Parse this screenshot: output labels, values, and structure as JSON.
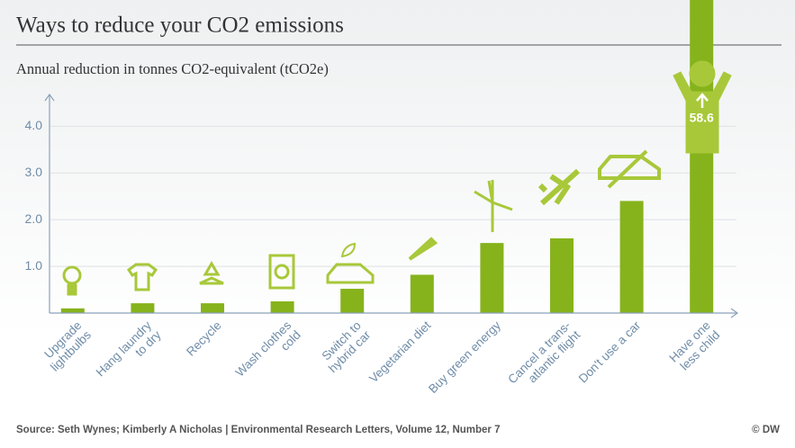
{
  "chart_data": {
    "type": "bar",
    "title": "Ways to reduce your CO2 emissions",
    "subtitle": "Annual reduction in tonnes CO2-equivalent (tCO2e)",
    "categories": [
      [
        "Upgrade",
        "lightbulbs"
      ],
      [
        "Hang laundry",
        "to dry"
      ],
      [
        "Recycle"
      ],
      [
        "Wash clothes",
        "cold"
      ],
      [
        "Switch to",
        "hybrid car"
      ],
      [
        "Vegetarian diet"
      ],
      [
        "Buy green energy"
      ],
      [
        "Cancel a trans-",
        "atlantic flight"
      ],
      [
        "Don't use a car"
      ],
      [
        "Have one",
        "less child"
      ]
    ],
    "values": [
      0.1,
      0.21,
      0.21,
      0.25,
      0.52,
      0.82,
      1.5,
      1.6,
      2.4,
      58.6
    ],
    "value_labels": [
      null,
      null,
      null,
      null,
      null,
      null,
      null,
      null,
      null,
      "58.6"
    ],
    "color": "#86b31c",
    "ylim": [
      0,
      4.7
    ],
    "yticks": [
      {
        "value": 1,
        "label": "1.0"
      },
      {
        "value": 2,
        "label": "2.0"
      },
      {
        "value": 3,
        "label": "3.0"
      },
      {
        "value": 4,
        "label": "4.0"
      }
    ],
    "grid": true,
    "source": "Source: Seth Wynes; Kimberly A Nicholas | Environmental Research Letters, Volume 12, Number 7",
    "credit": "© DW"
  }
}
